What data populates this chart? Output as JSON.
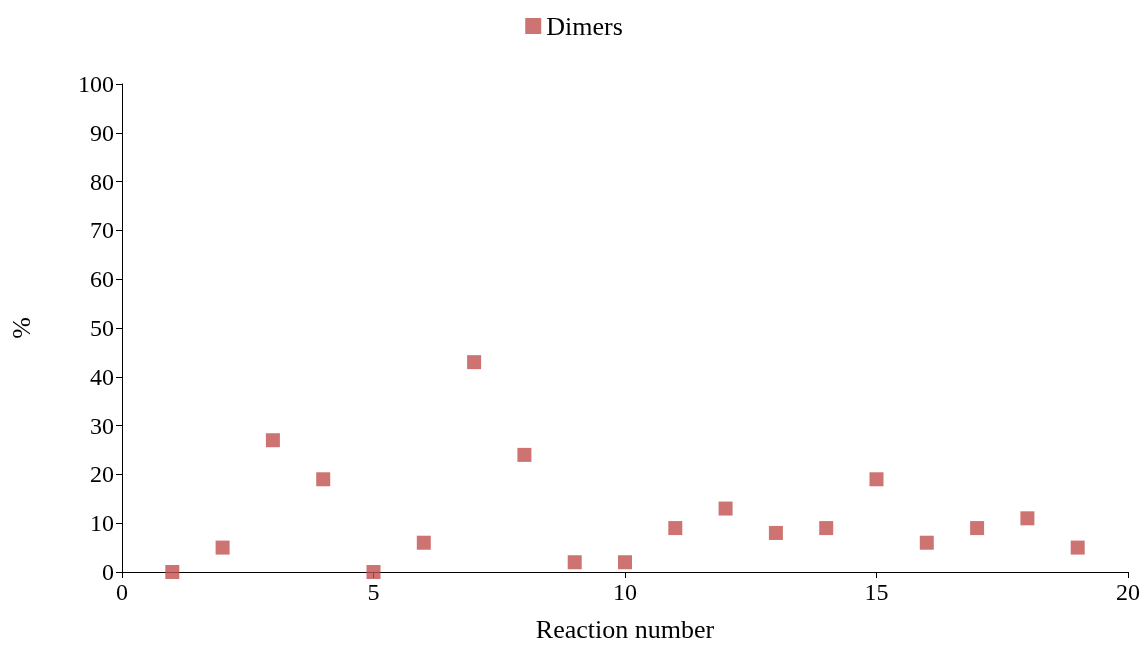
{
  "chart_data": {
    "type": "scatter",
    "xlabel": "Reaction number",
    "ylabel": "%",
    "x": [
      1,
      2,
      3,
      4,
      5,
      6,
      7,
      8,
      9,
      10,
      11,
      12,
      13,
      14,
      15,
      16,
      17,
      18,
      19
    ],
    "series": [
      {
        "name": "Dimers",
        "color": "#c0504d",
        "values": [
          0,
          5,
          27,
          19,
          0,
          6,
          43,
          24,
          2,
          2,
          9,
          13,
          8,
          9,
          19,
          6,
          9,
          11,
          5
        ]
      }
    ],
    "xlim": [
      0,
      20
    ],
    "xticks": [
      0,
      5,
      10,
      15,
      20
    ],
    "ylim": [
      0,
      100
    ],
    "yticks": [
      0,
      10,
      20,
      30,
      40,
      50,
      60,
      70,
      80,
      90,
      100
    ],
    "grid": false,
    "legend": "top",
    "marker": "square"
  }
}
